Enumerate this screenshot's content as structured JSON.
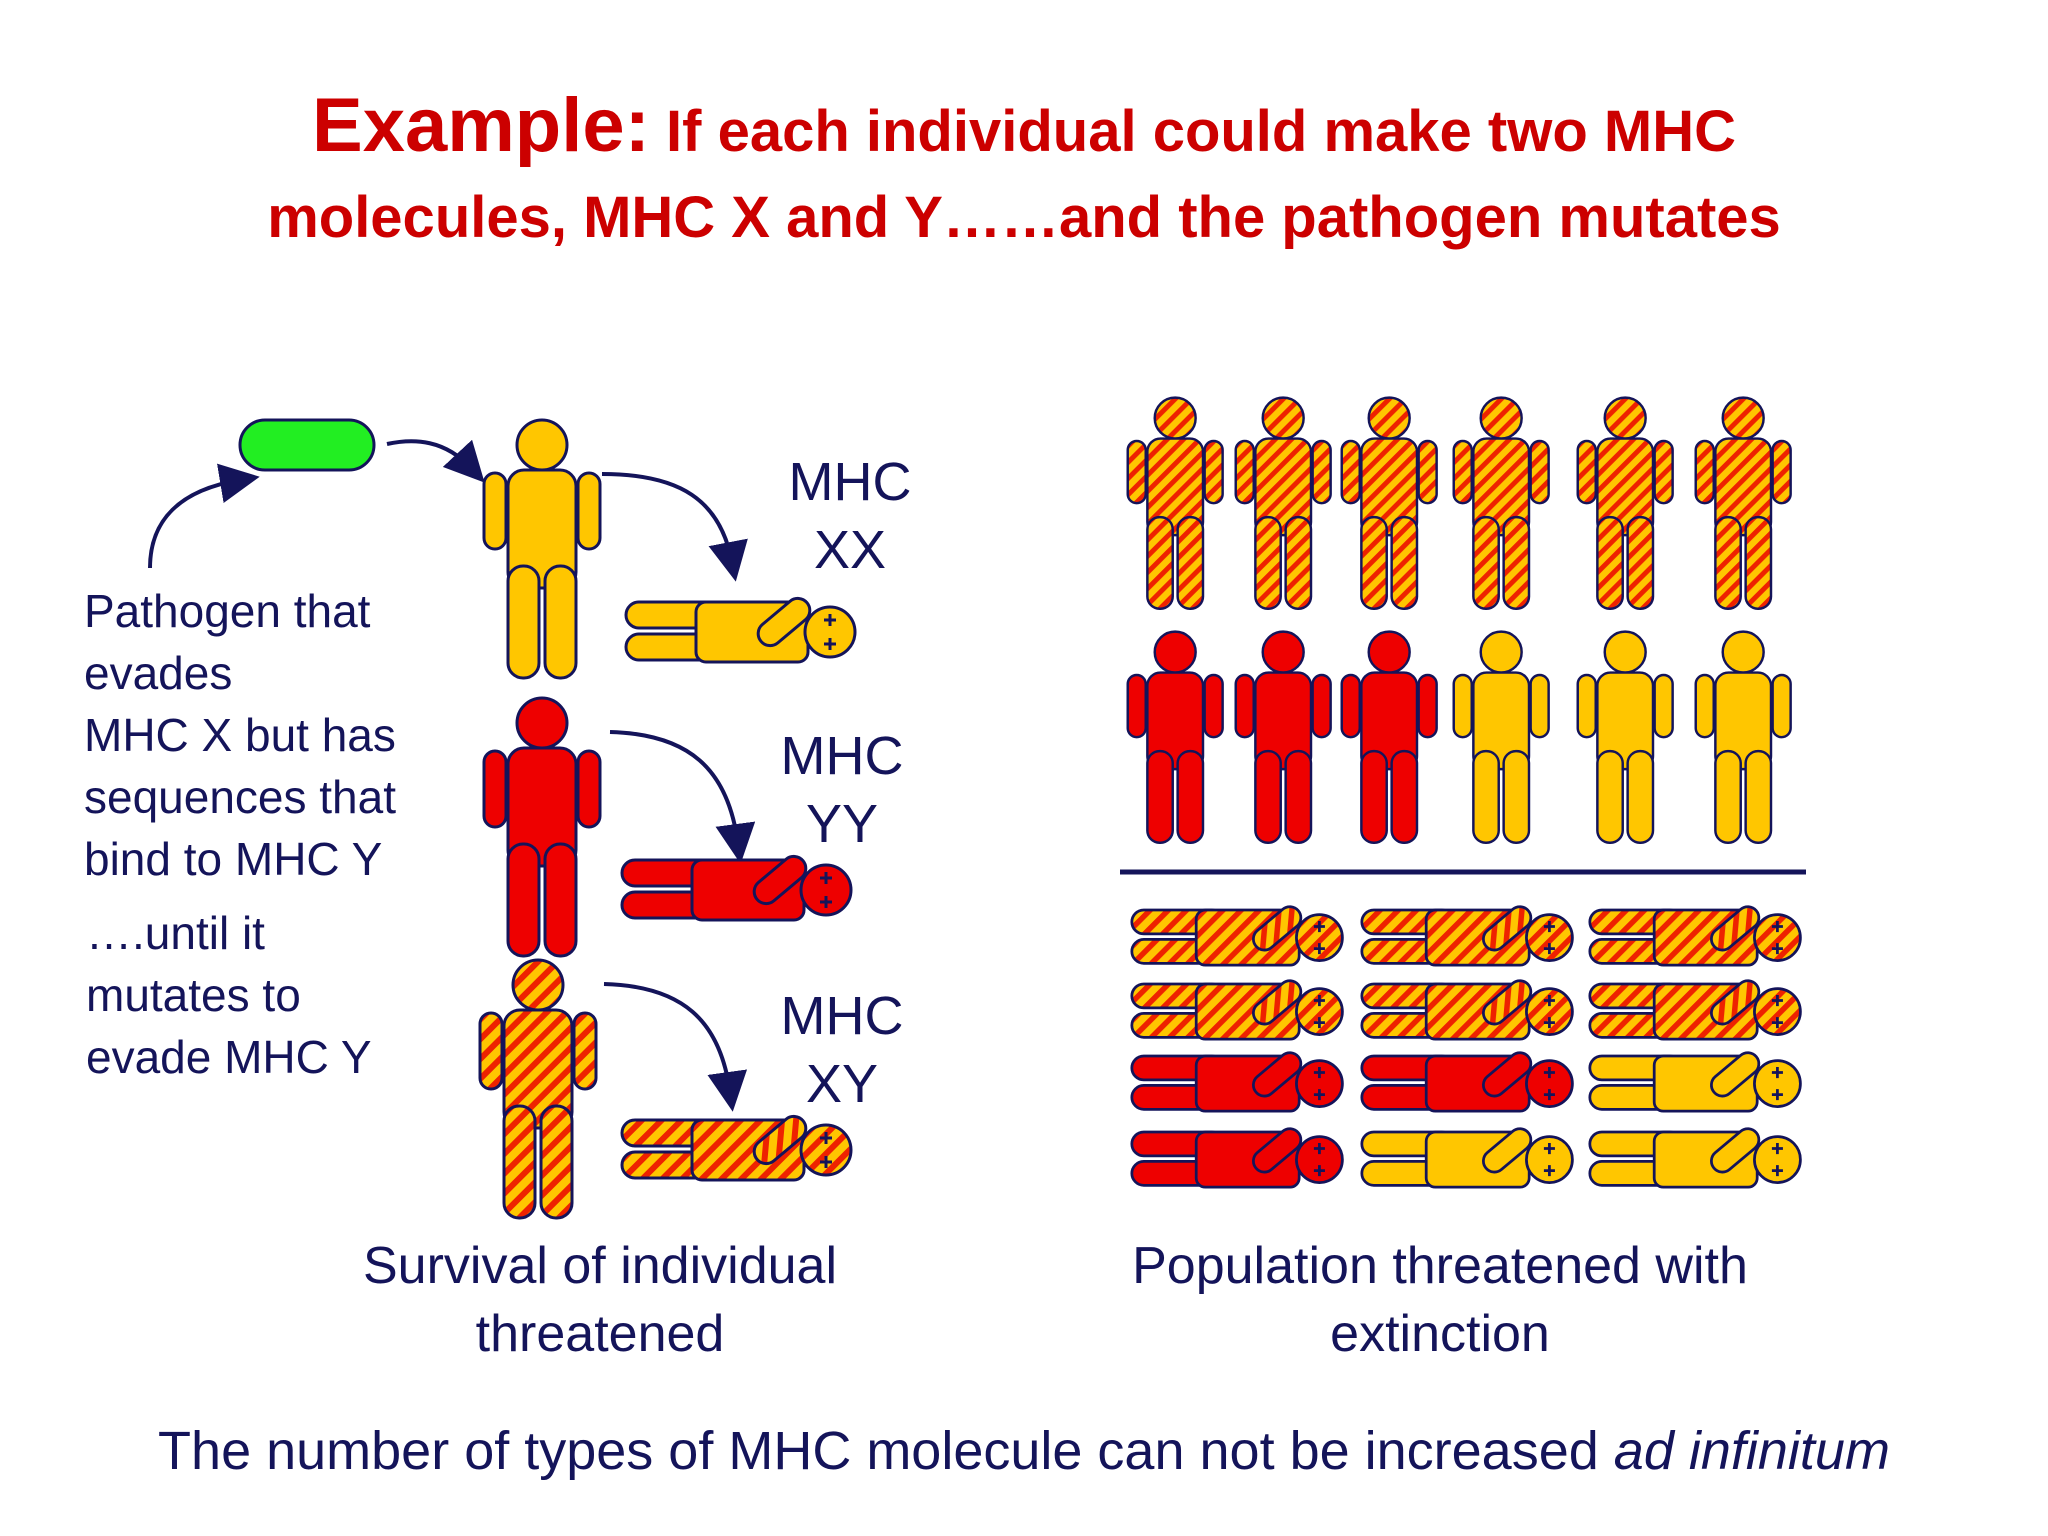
{
  "title": {
    "lead": "Example:",
    "line1_rest": " If each individual could make two MHC",
    "line2": "molecules, MHC X and Y……and the pathogen mutates"
  },
  "left_panel": {
    "pathogen_description": [
      "Pathogen that",
      "evades",
      "MHC X but has",
      "sequences that",
      "bind to MHC Y"
    ],
    "mutation_note": [
      "….until it",
      "mutates to",
      "evade MHC Y"
    ],
    "genotypes": [
      {
        "line1": "MHC",
        "line2": "XX",
        "fill": "yellow"
      },
      {
        "line1": "MHC",
        "line2": "YY",
        "fill": "red"
      },
      {
        "line1": "MHC",
        "line2": "XY",
        "fill": "striped"
      }
    ],
    "caption": [
      "Survival of individual",
      "threatened"
    ]
  },
  "right_panel": {
    "standing_rows": [
      [
        "striped",
        "striped",
        "striped",
        "striped",
        "striped",
        "striped"
      ],
      [
        "red",
        "red",
        "red",
        "yellow",
        "yellow",
        "yellow"
      ]
    ],
    "lying_rows": [
      [
        "striped",
        "striped",
        "striped"
      ],
      [
        "striped",
        "striped",
        "striped"
      ],
      [
        "red",
        "red",
        "yellow"
      ],
      [
        "red",
        "yellow",
        "yellow"
      ]
    ],
    "caption": [
      "Population threatened with",
      "extinction"
    ]
  },
  "footer": {
    "text": "The number of types of MHC molecule can not be increased ",
    "italic": "ad infinitum"
  },
  "colors": {
    "title": "#cc0000",
    "text": "#14145a",
    "yellow": "#ffc600",
    "red": "#ee0000",
    "pathogen": "#22ee22",
    "outline": "#14145a"
  }
}
